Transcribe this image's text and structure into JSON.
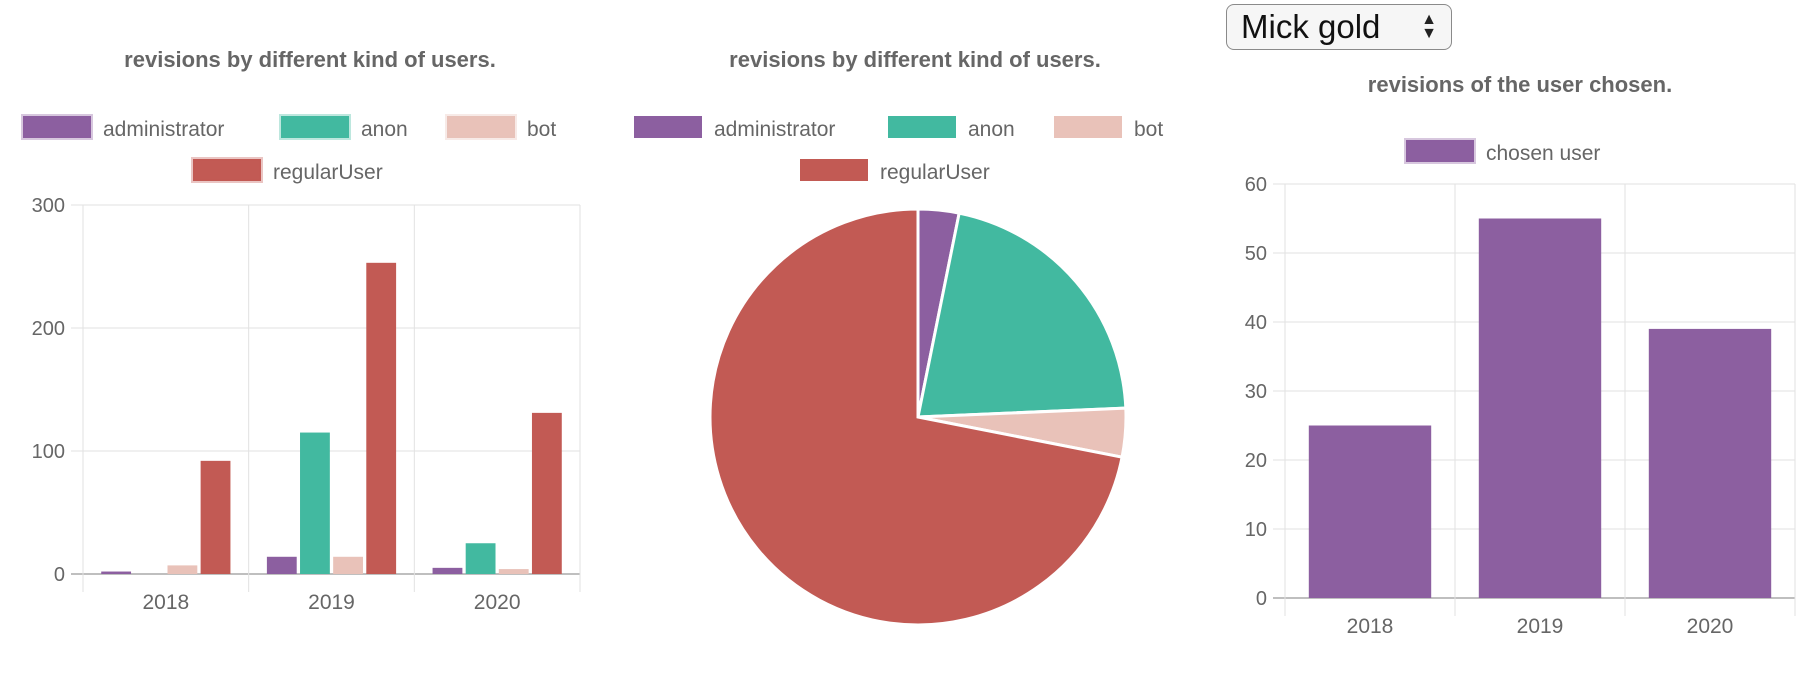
{
  "selector": {
    "value": "Mick gold"
  },
  "colors": {
    "administrator": "#8c5fa0",
    "anon": "#42b9a0",
    "bot": "#e9c2b9",
    "regularUser": "#c25a54",
    "chosen": "#8c5fa0"
  },
  "chart_data": [
    {
      "type": "bar",
      "title": "revisions by different kind of users.",
      "categories": [
        "2018",
        "2019",
        "2020"
      ],
      "series": [
        {
          "name": "administrator",
          "values": [
            2,
            14,
            5
          ]
        },
        {
          "name": "anon",
          "values": [
            0,
            115,
            25
          ]
        },
        {
          "name": "bot",
          "values": [
            7,
            14,
            4
          ]
        },
        {
          "name": "regularUser",
          "values": [
            92,
            253,
            131
          ]
        }
      ],
      "ylim": [
        0,
        300
      ],
      "yticks": [
        0,
        100,
        200,
        300
      ],
      "grid": true,
      "legend": "top"
    },
    {
      "type": "pie",
      "title": "revisions by different kind of users.",
      "slices": [
        {
          "name": "administrator",
          "value": 21
        },
        {
          "name": "anon",
          "value": 140
        },
        {
          "name": "bot",
          "value": 25
        },
        {
          "name": "regularUser",
          "value": 476
        }
      ],
      "legend": "top"
    },
    {
      "type": "bar",
      "title": "revisions of the user chosen.",
      "categories": [
        "2018",
        "2019",
        "2020"
      ],
      "series": [
        {
          "name": "chosen user",
          "values": [
            25,
            55,
            39
          ]
        }
      ],
      "ylim": [
        0,
        60
      ],
      "yticks": [
        0,
        10,
        20,
        30,
        40,
        50,
        60
      ],
      "grid": true,
      "legend": "top"
    }
  ]
}
